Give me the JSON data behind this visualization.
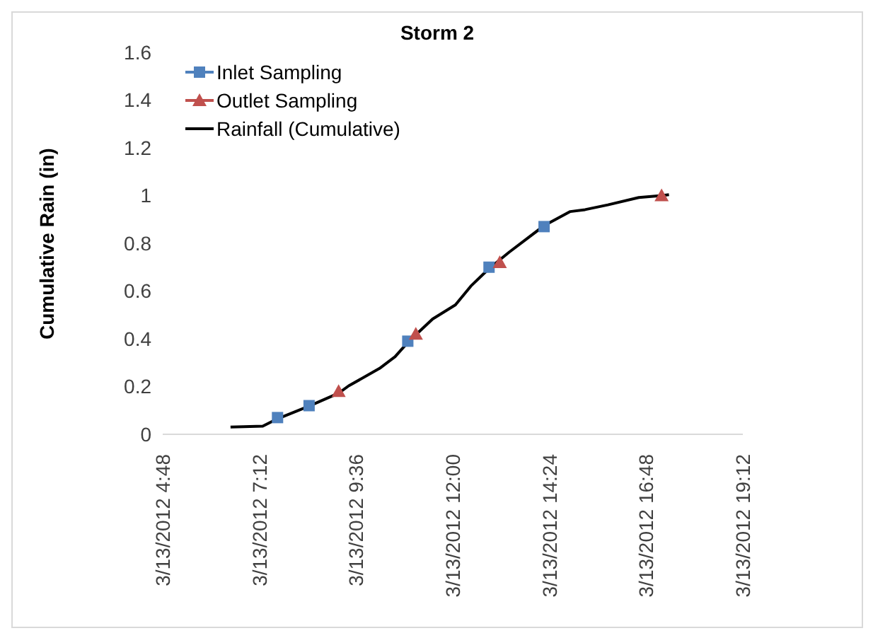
{
  "chart_data": {
    "type": "line",
    "title": "Storm 2",
    "ylabel": "Cumulative Rain (in)",
    "xlim": [
      "2012-03-13T04:48",
      "2012-03-13T19:12"
    ],
    "xticks": [
      {
        "value": "2012-03-13T04:48",
        "label": "3/13/2012 4:48"
      },
      {
        "value": "2012-03-13T07:12",
        "label": "3/13/2012 7:12"
      },
      {
        "value": "2012-03-13T09:36",
        "label": "3/13/2012 9:36"
      },
      {
        "value": "2012-03-13T12:00",
        "label": "3/13/2012 12:00"
      },
      {
        "value": "2012-03-13T14:24",
        "label": "3/13/2012 14:24"
      },
      {
        "value": "2012-03-13T16:48",
        "label": "3/13/2012 16:48"
      },
      {
        "value": "2012-03-13T19:12",
        "label": "3/13/2012 19:12"
      }
    ],
    "ylim": [
      0,
      1.6
    ],
    "yticks": [
      0,
      0.2,
      0.4,
      0.6,
      0.8,
      1,
      1.2,
      1.4,
      1.6
    ],
    "grid": false,
    "legend": "top left",
    "series": [
      {
        "name": "Inlet Sampling",
        "type": "scatter",
        "marker": "square",
        "color": "#4f81bd",
        "x": [
          "2012-03-13T07:39",
          "2012-03-13T08:26",
          "2012-03-13T10:53",
          "2012-03-13T12:54",
          "2012-03-13T14:16"
        ],
        "values": [
          0.07,
          0.12,
          0.39,
          0.7,
          0.87
        ]
      },
      {
        "name": "Outlet Sampling",
        "type": "scatter",
        "marker": "triangle",
        "color": "#c0504d",
        "x": [
          "2012-03-13T09:10",
          "2012-03-13T11:05",
          "2012-03-13T13:10",
          "2012-03-13T17:11"
        ],
        "values": [
          0.18,
          0.42,
          0.72,
          1.0
        ]
      },
      {
        "name": "Rainfall (Cumulative)",
        "marker": "none",
        "line_style": "solid",
        "color": "#000000",
        "x": [
          "2012-03-13T06:29",
          "2012-03-13T07:17",
          "2012-03-13T07:39",
          "2012-03-13T08:26",
          "2012-03-13T09:10",
          "2012-03-13T09:25",
          "2012-03-13T10:11",
          "2012-03-13T10:34",
          "2012-03-13T10:53",
          "2012-03-13T11:30",
          "2012-03-13T12:04",
          "2012-03-13T12:27",
          "2012-03-13T12:54",
          "2012-03-13T13:24",
          "2012-03-13T14:16",
          "2012-03-13T14:55",
          "2012-03-13T15:17",
          "2012-03-13T15:51",
          "2012-03-13T16:37",
          "2012-03-13T17:11",
          "2012-03-13T17:22"
        ],
        "values": [
          0.03,
          0.034,
          0.065,
          0.118,
          0.172,
          0.203,
          0.276,
          0.325,
          0.385,
          0.483,
          0.542,
          0.621,
          0.694,
          0.763,
          0.874,
          0.933,
          0.941,
          0.961,
          0.992,
          1.0,
          1.004
        ]
      }
    ]
  }
}
